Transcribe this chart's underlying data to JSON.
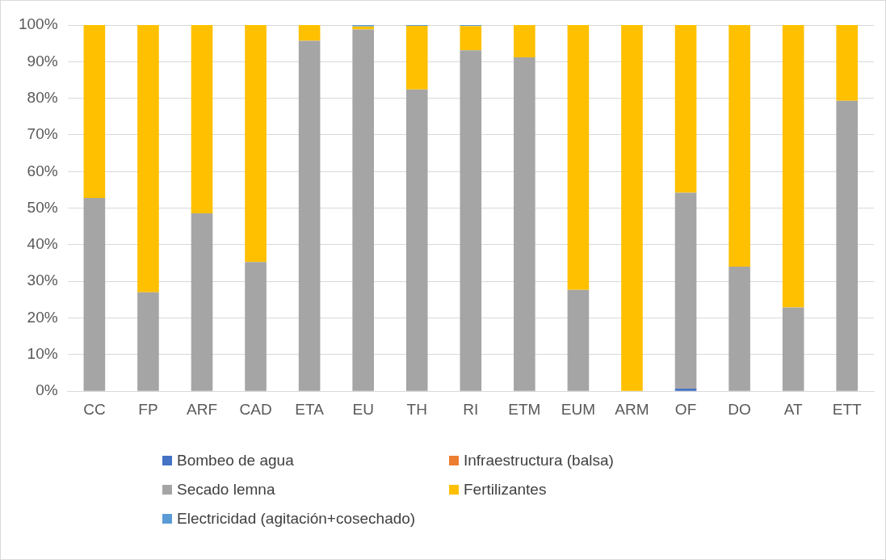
{
  "chart_data": {
    "type": "bar",
    "stacked": true,
    "categories": [
      "CC",
      "FP",
      "ARF",
      "CAD",
      "ETA",
      "EU",
      "TH",
      "RI",
      "ETM",
      "EUM",
      "ARM",
      "OF",
      "DO",
      "AT",
      "ETT"
    ],
    "series": [
      {
        "name": "Bombeo de agua",
        "color": "#4472c4",
        "values": [
          0,
          0,
          0,
          0,
          0,
          0,
          0,
          0,
          0,
          0,
          0,
          0.7,
          0,
          0,
          0
        ]
      },
      {
        "name": "Infraestructura (balsa)",
        "color": "#ed7d31",
        "values": [
          0,
          0,
          0,
          0,
          0,
          0,
          0,
          0,
          0,
          0,
          0,
          0,
          0,
          0,
          0
        ]
      },
      {
        "name": "Secado lemna",
        "color": "#a5a5a5",
        "values": [
          52.8,
          27,
          48.6,
          35.3,
          95.7,
          98.8,
          82.4,
          93.1,
          91.2,
          27.7,
          null,
          53.5,
          34,
          22.9,
          79.3
        ]
      },
      {
        "name": "Fertilizantes",
        "color": "#ffc000",
        "values": [
          47.2,
          73,
          51.4,
          64.7,
          4.3,
          0.8,
          17.4,
          6.6,
          8.8,
          72.3,
          100,
          45.8,
          66,
          77.1,
          20.7
        ]
      },
      {
        "name": "Electricidad (agitación+cosechado)",
        "color": "#5b9bd5",
        "values": [
          0,
          0,
          0,
          0,
          0,
          0.4,
          0.2,
          0.3,
          0,
          0,
          0,
          0,
          0,
          0,
          0
        ]
      }
    ],
    "ylim": [
      0,
      100
    ],
    "yticks": [
      {
        "value": 0,
        "label": "0%"
      },
      {
        "value": 10,
        "label": "10%"
      },
      {
        "value": 20,
        "label": "20%"
      },
      {
        "value": 30,
        "label": "30%"
      },
      {
        "value": 40,
        "label": "40%"
      },
      {
        "value": 50,
        "label": "50%"
      },
      {
        "value": 60,
        "label": "60%"
      },
      {
        "value": 70,
        "label": "70%"
      },
      {
        "value": 80,
        "label": "80%"
      },
      {
        "value": 90,
        "label": "90%"
      },
      {
        "value": 100,
        "label": "100%"
      }
    ],
    "grid": "y",
    "legend": "bottom"
  }
}
